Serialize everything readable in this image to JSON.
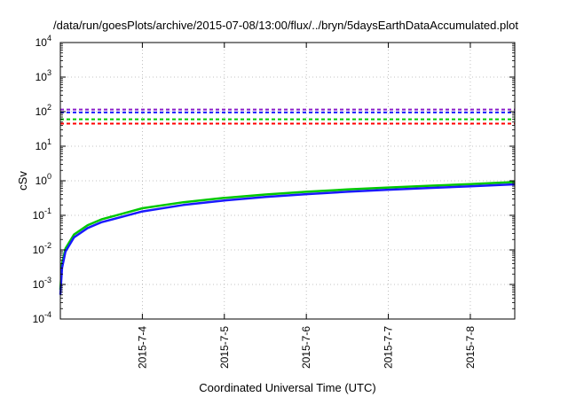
{
  "chart_data": {
    "type": "line",
    "title": "/data/run/goesPlots/archive/2015-07-08/13:00/flux/../bryn/5daysEarthDataAccumulated.plot",
    "xlabel": "Coordinated Universal Time (UTC)",
    "ylabel": "cSv",
    "yscale": "log",
    "ylim": [
      0.0001,
      10000
    ],
    "xlim": [
      "2015-07-03T00:00",
      "2015-07-08T13:00"
    ],
    "grid": true,
    "y_tick_labels": [
      {
        "base": "10",
        "exp": "-4"
      },
      {
        "base": "10",
        "exp": "-3"
      },
      {
        "base": "10",
        "exp": "-2"
      },
      {
        "base": "10",
        "exp": "-1"
      },
      {
        "base": "10",
        "exp": "0"
      },
      {
        "base": "10",
        "exp": "1"
      },
      {
        "base": "10",
        "exp": "2"
      },
      {
        "base": "10",
        "exp": "3"
      },
      {
        "base": "10",
        "exp": "4"
      }
    ],
    "x_ticks": [
      "2015-7-4",
      "2015-7-5",
      "2015-7-6",
      "2015-7-7",
      "2015-7-8"
    ],
    "x_tick_dates": [
      "2015-07-04",
      "2015-07-05",
      "2015-07-06",
      "2015-07-07",
      "2015-07-08"
    ],
    "thresholds": [
      {
        "value": 115,
        "color": "#8b1fc9"
      },
      {
        "value": 95,
        "color": "#1a1aff"
      },
      {
        "value": 60,
        "color": "#00cc00"
      },
      {
        "value": 45,
        "color": "#ff0000"
      }
    ],
    "series": [
      {
        "color": "#00c800",
        "x": [
          "2015-07-03T00:00",
          "2015-07-03T00:30",
          "2015-07-03T01:30",
          "2015-07-03T04:00",
          "2015-07-03T08:00",
          "2015-07-03T12:00",
          "2015-07-04T00:00",
          "2015-07-04T12:00",
          "2015-07-05T00:00",
          "2015-07-05T12:00",
          "2015-07-06T00:00",
          "2015-07-06T12:00",
          "2015-07-07T00:00",
          "2015-07-07T12:00",
          "2015-07-08T00:00",
          "2015-07-08T13:00"
        ],
        "values": [
          0.0007,
          0.004,
          0.011,
          0.028,
          0.052,
          0.076,
          0.16,
          0.24,
          0.32,
          0.4,
          0.48,
          0.56,
          0.64,
          0.72,
          0.8,
          0.92
        ]
      },
      {
        "color": "#1a1aff",
        "x": [
          "2015-07-03T00:00",
          "2015-07-03T00:30",
          "2015-07-03T01:30",
          "2015-07-03T04:00",
          "2015-07-03T08:00",
          "2015-07-03T12:00",
          "2015-07-04T00:00",
          "2015-07-04T12:00",
          "2015-07-05T00:00",
          "2015-07-05T12:00",
          "2015-07-06T00:00",
          "2015-07-06T12:00",
          "2015-07-07T00:00",
          "2015-07-07T12:00",
          "2015-07-08T00:00",
          "2015-07-08T13:00"
        ],
        "values": [
          0.0005,
          0.003,
          0.009,
          0.023,
          0.043,
          0.063,
          0.13,
          0.2,
          0.27,
          0.34,
          0.41,
          0.48,
          0.55,
          0.62,
          0.69,
          0.79
        ]
      }
    ]
  }
}
